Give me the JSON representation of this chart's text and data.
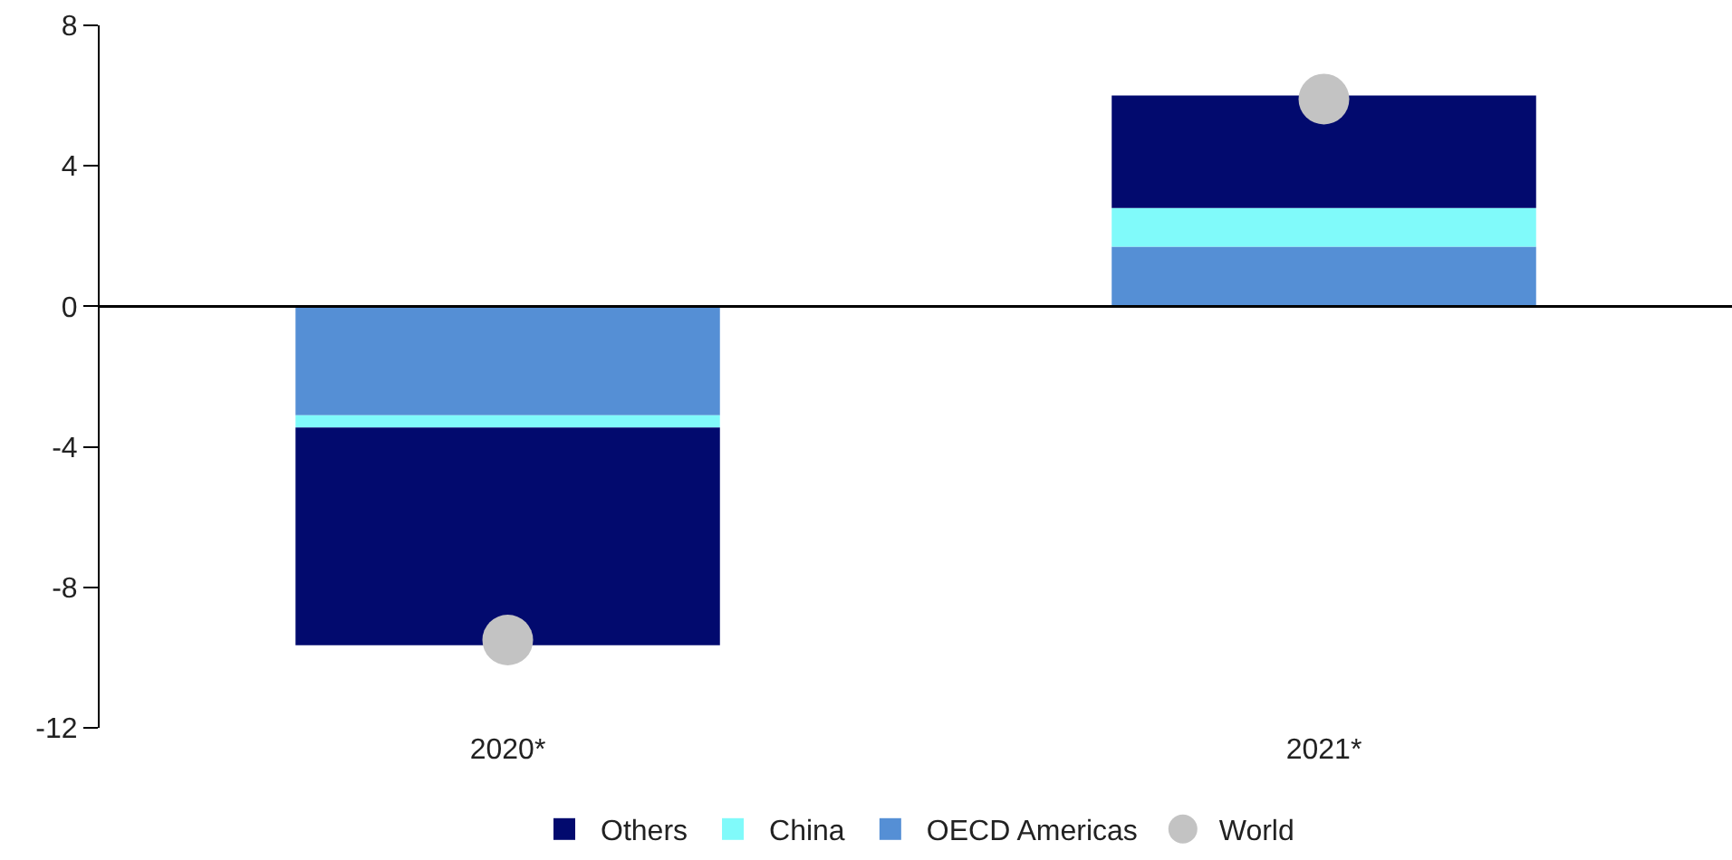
{
  "chart_data": {
    "type": "bar",
    "stacked": true,
    "categories": [
      "2020*",
      "2021*"
    ],
    "series": [
      {
        "name": "OECD Americas",
        "color": "#558fd5",
        "values": [
          -3.1,
          1.7
        ]
      },
      {
        "name": "China",
        "color": "#80fafa",
        "values": [
          -0.35,
          1.1
        ]
      },
      {
        "name": "Others",
        "color": "#020a6e",
        "values": [
          -6.2,
          3.2
        ]
      },
      {
        "name": "World",
        "type": "scatter",
        "color": "#c3c3c3",
        "values": [
          -9.5,
          5.9
        ]
      }
    ],
    "ylim": [
      -12,
      8
    ],
    "yticks": [
      -12,
      -8,
      -4,
      0,
      4,
      8
    ],
    "ref_lines": [
      {
        "axis": "y",
        "value": 0,
        "color": "#000000"
      }
    ],
    "legend": "bottom",
    "marker": "circle"
  }
}
